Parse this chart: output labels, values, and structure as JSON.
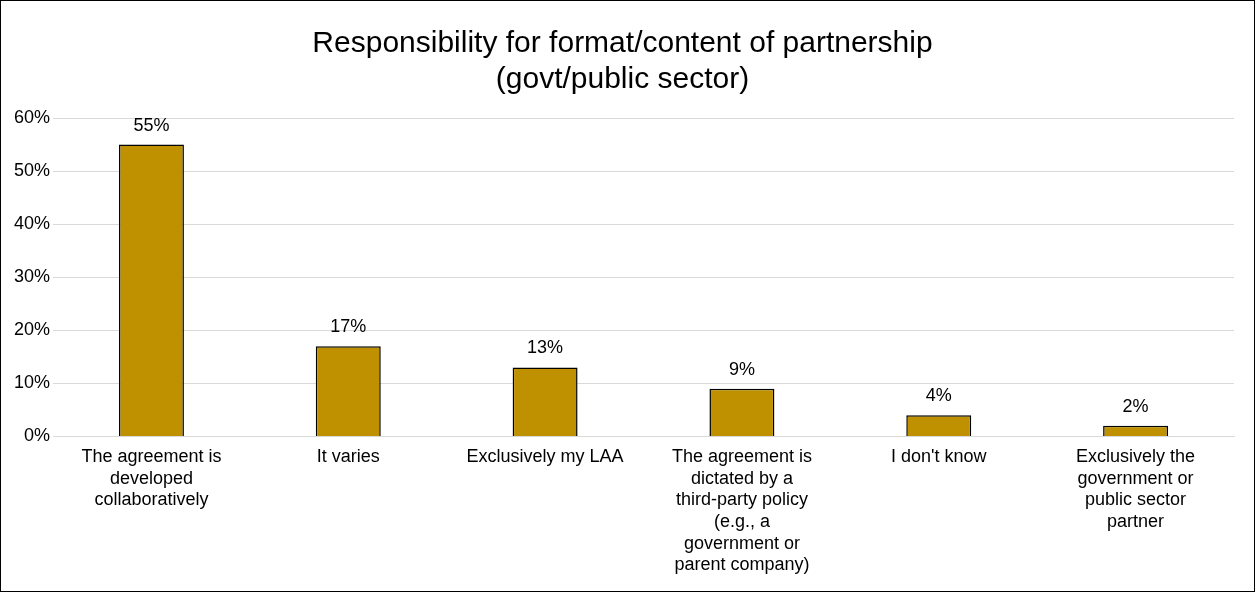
{
  "chart_data": {
    "type": "bar",
    "title": "Responsibility for format/content of partnership (govt/public sector)",
    "categories": [
      "The agreement is developed collaboratively",
      "It varies",
      "Exclusively my LAA",
      "The agreement is dictated by a third-party policy (e.g., a government or parent company)",
      "I don't know",
      "Exclusively the government or public sector partner"
    ],
    "values": [
      55,
      17,
      13,
      9,
      4,
      2
    ],
    "color": "#bf9000",
    "ylim": [
      0,
      60
    ],
    "yticks": [
      {
        "value": 0,
        "label": "0%"
      },
      {
        "value": 10,
        "label": "10%"
      },
      {
        "value": 20,
        "label": "20%"
      },
      {
        "value": 30,
        "label": "30%"
      },
      {
        "value": 40,
        "label": "40%"
      },
      {
        "value": 50,
        "label": "50%"
      },
      {
        "value": 60,
        "label": "60%"
      }
    ],
    "value_labels": [
      "55%",
      "17%",
      "13%",
      "9%",
      "4%",
      "2%"
    ],
    "grid": "y",
    "legend": false
  }
}
